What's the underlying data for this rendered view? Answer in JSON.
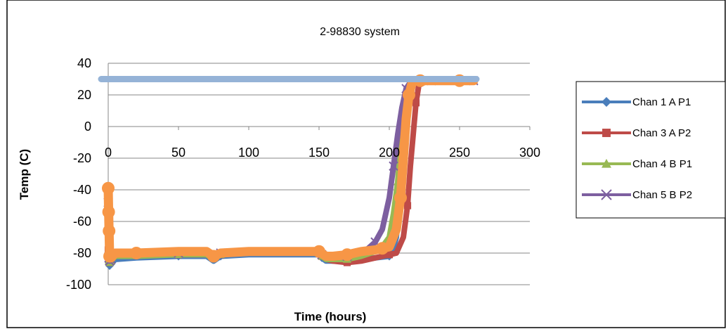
{
  "chart_data": {
    "type": "line",
    "title": "2-98830 system",
    "xlabel": "Time (hours)",
    "ylabel": "Temp (C)",
    "xlim": [
      0,
      300
    ],
    "ylim": [
      -100,
      40
    ],
    "x_ticks": [
      0,
      50,
      100,
      150,
      200,
      250,
      300
    ],
    "y_ticks": [
      40,
      20,
      0,
      -20,
      -40,
      -60,
      -80,
      -100
    ],
    "grid": true,
    "legend_position": "right",
    "series": [
      {
        "name": "Chan 1 A P1",
        "color": "#4a7ebb",
        "marker": "diamond",
        "x": [
          0,
          0.5,
          1,
          2,
          5,
          20,
          50,
          70,
          75,
          80,
          100,
          150,
          152,
          155,
          160,
          170,
          180,
          190,
          200,
          202,
          205,
          208,
          210,
          212,
          215,
          218,
          220,
          225,
          230,
          240,
          250,
          260
        ],
        "y": [
          -80,
          -86,
          -88,
          -87,
          -84,
          -83,
          -82,
          -82,
          -85,
          -82,
          -81,
          -81,
          -83,
          -85,
          -85,
          -85,
          -84,
          -83,
          -82,
          -80,
          -70,
          -40,
          -10,
          15,
          26,
          29,
          29,
          29,
          29,
          29,
          29,
          29
        ]
      },
      {
        "name": "Chan 3 A P2",
        "color": "#be4b48",
        "marker": "square",
        "x": [
          0,
          0.5,
          1,
          2,
          5,
          20,
          50,
          70,
          75,
          80,
          100,
          150,
          152,
          155,
          160,
          170,
          180,
          190,
          200,
          205,
          210,
          213,
          215,
          217,
          219,
          221,
          225,
          230,
          240,
          250,
          260
        ],
        "y": [
          -78,
          -84,
          -86,
          -85,
          -82,
          -81,
          -81,
          -81,
          -84,
          -81,
          -80,
          -80,
          -82,
          -84,
          -85,
          -86,
          -85,
          -83,
          -81,
          -80,
          -70,
          -50,
          -25,
          -5,
          15,
          26,
          28,
          29,
          29,
          29,
          29
        ]
      },
      {
        "name": "Chan 4 B P1",
        "color": "#98b954",
        "marker": "triangle",
        "x": [
          0,
          0.5,
          1,
          2,
          5,
          20,
          50,
          70,
          75,
          80,
          100,
          150,
          152,
          155,
          160,
          170,
          180,
          190,
          195,
          200,
          203,
          206,
          208,
          210,
          213,
          216,
          220,
          230,
          240,
          250,
          260
        ],
        "y": [
          -79,
          -85,
          -86,
          -85,
          -82,
          -82,
          -81,
          -81,
          -84,
          -81,
          -80,
          -80,
          -82,
          -84,
          -84,
          -84,
          -82,
          -79,
          -76,
          -70,
          -55,
          -35,
          -10,
          10,
          24,
          28,
          29,
          29,
          29,
          29,
          29
        ]
      },
      {
        "name": "Chan 5 B P2",
        "color": "#7d5fa0",
        "marker": "x",
        "x": [
          0,
          0.5,
          1,
          2,
          5,
          20,
          50,
          70,
          75,
          80,
          100,
          150,
          152,
          155,
          160,
          170,
          180,
          185,
          190,
          195,
          200,
          203,
          206,
          209,
          212,
          215,
          220,
          230,
          240,
          250,
          260
        ],
        "y": [
          -48,
          -83,
          -85,
          -84,
          -81,
          -81,
          -80,
          -80,
          -83,
          -80,
          -79,
          -79,
          -81,
          -83,
          -83,
          -82,
          -80,
          -77,
          -73,
          -65,
          -45,
          -25,
          -5,
          12,
          24,
          28,
          29,
          29,
          29,
          29,
          29
        ]
      },
      {
        "name": "",
        "color": "#f79646",
        "marker": "circle",
        "x": [
          0,
          0.3,
          0.6,
          1,
          2,
          5,
          20,
          50,
          70,
          75,
          80,
          100,
          150,
          155,
          160,
          170,
          180,
          190,
          195,
          200,
          205,
          208,
          210,
          212,
          214,
          216,
          218,
          222,
          230,
          240,
          250,
          260
        ],
        "y": [
          -39,
          -54,
          -66,
          -82,
          -83,
          -80,
          -80,
          -79,
          -79,
          -82,
          -80,
          -79,
          -79,
          -82,
          -82,
          -81,
          -79,
          -78,
          -77,
          -76,
          -65,
          -45,
          -20,
          5,
          20,
          27,
          29,
          29,
          29,
          29,
          29,
          29
        ]
      },
      {
        "name": "",
        "color": "#95b3d7",
        "marker": "none",
        "x": [
          -5,
          0,
          25,
          50,
          75,
          100,
          125,
          150,
          175,
          200,
          225,
          250,
          262
        ],
        "y": [
          30,
          30,
          30,
          30,
          30,
          30,
          30,
          30,
          30,
          30,
          30,
          30,
          30
        ]
      }
    ]
  }
}
